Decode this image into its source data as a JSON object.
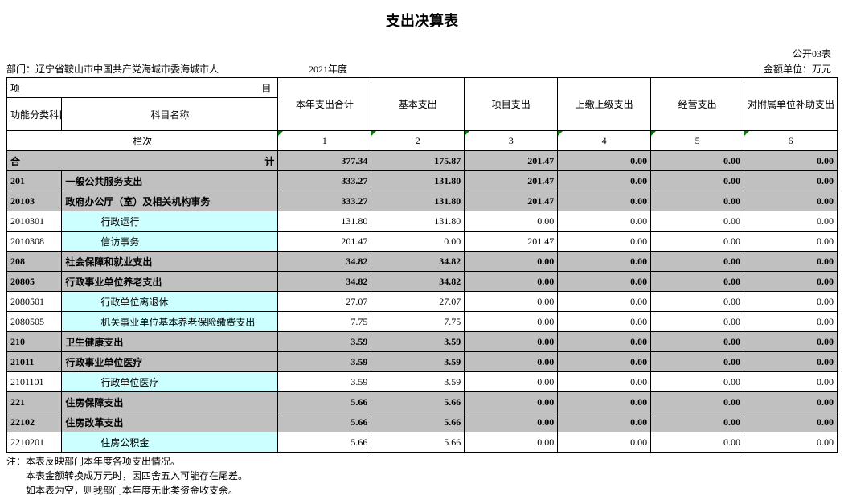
{
  "title": "支出决算表",
  "meta": {
    "form_no": "公开03表",
    "dept_label": "部门：",
    "dept": "辽宁省鞍山市中国共产党海城市委海城市人",
    "year": "2021年度",
    "unit_label": "金额单位：万元"
  },
  "header": {
    "xiangmu": "项",
    "mu": "目",
    "code": "功能分类科目编码",
    "name": "科目名称",
    "lanci": "栏次",
    "cols": [
      "本年支出合计",
      "基本支出",
      "项目支出",
      "上缴上级支出",
      "经营支出",
      "对附属单位补助支出"
    ],
    "col_nums": [
      "1",
      "2",
      "3",
      "4",
      "5",
      "6"
    ]
  },
  "heji_label": "合",
  "heji_label2": "计",
  "heji": [
    "377.34",
    "175.87",
    "201.47",
    "0.00",
    "0.00",
    "0.00"
  ],
  "rows": [
    {
      "code": "201",
      "name": "一般公共服务支出",
      "v": [
        "333.27",
        "131.80",
        "201.47",
        "0.00",
        "0.00",
        "0.00"
      ],
      "style": "grey",
      "bold": true,
      "indent": 0
    },
    {
      "code": "20103",
      "name": "政府办公厅（室）及相关机构事务",
      "v": [
        "333.27",
        "131.80",
        "201.47",
        "0.00",
        "0.00",
        "0.00"
      ],
      "style": "grey",
      "bold": true,
      "indent": 0
    },
    {
      "code": "2010301",
      "name": "行政运行",
      "v": [
        "131.80",
        "131.80",
        "0.00",
        "0.00",
        "0.00",
        "0.00"
      ],
      "style": "cyan",
      "bold": false,
      "indent": 2
    },
    {
      "code": "2010308",
      "name": "信访事务",
      "v": [
        "201.47",
        "0.00",
        "201.47",
        "0.00",
        "0.00",
        "0.00"
      ],
      "style": "cyan",
      "bold": false,
      "indent": 2
    },
    {
      "code": "208",
      "name": "社会保障和就业支出",
      "v": [
        "34.82",
        "34.82",
        "0.00",
        "0.00",
        "0.00",
        "0.00"
      ],
      "style": "grey",
      "bold": true,
      "indent": 0
    },
    {
      "code": "20805",
      "name": "行政事业单位养老支出",
      "v": [
        "34.82",
        "34.82",
        "0.00",
        "0.00",
        "0.00",
        "0.00"
      ],
      "style": "grey",
      "bold": true,
      "indent": 0
    },
    {
      "code": "2080501",
      "name": "行政单位离退休",
      "v": [
        "27.07",
        "27.07",
        "0.00",
        "0.00",
        "0.00",
        "0.00"
      ],
      "style": "cyan",
      "bold": false,
      "indent": 2
    },
    {
      "code": "2080505",
      "name": "机关事业单位基本养老保险缴费支出",
      "v": [
        "7.75",
        "7.75",
        "0.00",
        "0.00",
        "0.00",
        "0.00"
      ],
      "style": "cyan",
      "bold": false,
      "indent": 2
    },
    {
      "code": "210",
      "name": "卫生健康支出",
      "v": [
        "3.59",
        "3.59",
        "0.00",
        "0.00",
        "0.00",
        "0.00"
      ],
      "style": "grey",
      "bold": true,
      "indent": 0
    },
    {
      "code": "21011",
      "name": "行政事业单位医疗",
      "v": [
        "3.59",
        "3.59",
        "0.00",
        "0.00",
        "0.00",
        "0.00"
      ],
      "style": "grey",
      "bold": true,
      "indent": 0
    },
    {
      "code": "2101101",
      "name": "行政单位医疗",
      "v": [
        "3.59",
        "3.59",
        "0.00",
        "0.00",
        "0.00",
        "0.00"
      ],
      "style": "cyan",
      "bold": false,
      "indent": 2
    },
    {
      "code": "221",
      "name": "住房保障支出",
      "v": [
        "5.66",
        "5.66",
        "0.00",
        "0.00",
        "0.00",
        "0.00"
      ],
      "style": "grey",
      "bold": true,
      "indent": 0
    },
    {
      "code": "22102",
      "name": "住房改革支出",
      "v": [
        "5.66",
        "5.66",
        "0.00",
        "0.00",
        "0.00",
        "0.00"
      ],
      "style": "grey",
      "bold": true,
      "indent": 0
    },
    {
      "code": "2210201",
      "name": "住房公积金",
      "v": [
        "5.66",
        "5.66",
        "0.00",
        "0.00",
        "0.00",
        "0.00"
      ],
      "style": "cyan",
      "bold": false,
      "indent": 2
    }
  ],
  "notes": [
    "注：本表反映部门本年度各项支出情况。",
    "　　本表金额转换成万元时，因四舍五入可能存在尾差。",
    "　　如本表为空，则我部门本年度无此类资金收支余。"
  ]
}
